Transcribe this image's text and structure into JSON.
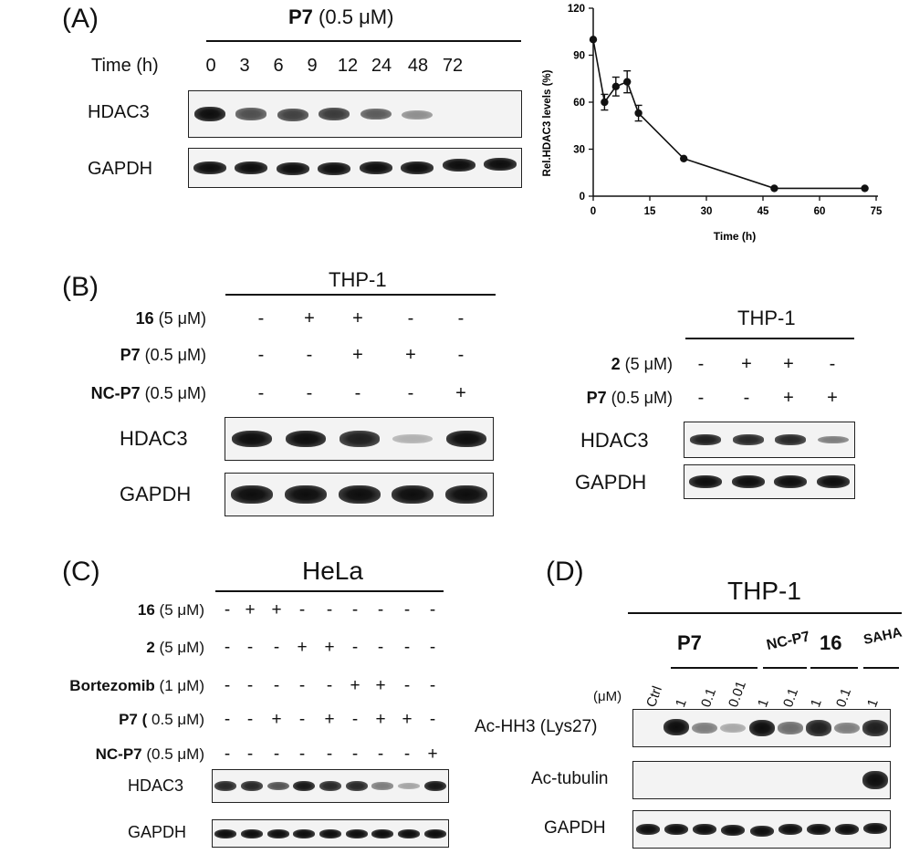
{
  "panelA": {
    "label": "(A)",
    "treatment_bold": "P7",
    "treatment_conc": "(0.5 μM)",
    "time_label": "Time (h)",
    "time_points": [
      "0",
      "3",
      "6",
      "9",
      "12",
      "24",
      "48",
      "72"
    ],
    "rows": [
      "HDAC3",
      "GAPDH"
    ],
    "hdac3_band_intensity": [
      1.0,
      0.62,
      0.7,
      0.74,
      0.55,
      0.25,
      0.0,
      0.0
    ],
    "gapdh_band_intensity": [
      1,
      1,
      1,
      1,
      1,
      1,
      1,
      1
    ]
  },
  "chart_data": {
    "type": "line",
    "title": "",
    "xlabel": "Time (h)",
    "ylabel": "Rel.HDAC3 levels (%)",
    "xlim": [
      0,
      75
    ],
    "ylim": [
      0,
      120
    ],
    "xticks": [
      "0",
      "15",
      "30",
      "45",
      "60",
      "75"
    ],
    "yticks": [
      "0",
      "30",
      "60",
      "90",
      "120"
    ],
    "series": [
      {
        "x": [
          0,
          3,
          6,
          9,
          12,
          24,
          48,
          72
        ],
        "y": [
          100,
          60,
          70,
          73,
          53,
          24,
          5,
          5
        ],
        "err": [
          0,
          5,
          6,
          7,
          5,
          0,
          0,
          0
        ]
      }
    ],
    "grid": false
  },
  "panelB": {
    "label": "(B)",
    "left": {
      "cell_line": "THP-1",
      "conditions": [
        {
          "name": "16",
          "conc": "(5 μM)",
          "signs": [
            "-",
            "+",
            "+",
            "-",
            "-"
          ]
        },
        {
          "name": "P7",
          "conc": "(0.5 μM)",
          "signs": [
            "-",
            "-",
            "+",
            "+",
            "-"
          ]
        },
        {
          "name": "NC-P7",
          "conc": "(0.5 μM)",
          "signs": [
            "-",
            "-",
            "-",
            "-",
            "+"
          ]
        }
      ],
      "rows": [
        "HDAC3",
        "GAPDH"
      ],
      "hdac3_band_intensity": [
        1.0,
        1.0,
        0.9,
        0.05,
        1.0
      ]
    },
    "right": {
      "cell_line": "THP-1",
      "conditions": [
        {
          "name": "2",
          "conc": "(5 μM)",
          "signs": [
            "-",
            "+",
            "+",
            "-"
          ]
        },
        {
          "name": "P7",
          "conc": "(0.5 μM)",
          "signs": [
            "-",
            "-",
            "+",
            "+"
          ]
        }
      ],
      "rows": [
        "HDAC3",
        "GAPDH"
      ],
      "hdac3_band_intensity": [
        0.9,
        0.85,
        0.85,
        0.35
      ]
    }
  },
  "panelC": {
    "label": "(C)",
    "cell_line": "HeLa",
    "conditions": [
      {
        "name": "16",
        "conc": "(5 μM)",
        "signs": [
          "-",
          "+",
          "+",
          "-",
          "-",
          "-",
          "-",
          "-",
          "-"
        ]
      },
      {
        "name": "2",
        "conc": "(5 μM)",
        "signs": [
          "-",
          "-",
          "-",
          "+",
          "+",
          "-",
          "-",
          "-",
          "-"
        ]
      },
      {
        "name": "Bortezomib",
        "conc": "(1 μM)",
        "signs": [
          "-",
          "-",
          "-",
          "-",
          "-",
          "+",
          "+",
          "-",
          "-"
        ]
      },
      {
        "name": "P7 (",
        "conc": "0.5 μM)",
        "signs": [
          "-",
          "-",
          "+",
          "-",
          "+",
          "-",
          "+",
          "+",
          "-"
        ]
      },
      {
        "name": "NC-P7",
        "conc": "(0.5 μM)",
        "signs": [
          "-",
          "-",
          "-",
          "-",
          "-",
          "-",
          "-",
          "-",
          "+"
        ]
      }
    ],
    "rows": [
      "HDAC3",
      "GAPDH"
    ],
    "hdac3_band_intensity": [
      0.85,
      0.85,
      0.6,
      0.95,
      0.85,
      0.85,
      0.35,
      0.12,
      0.95
    ]
  },
  "panelD": {
    "label": "(D)",
    "cell_line": "THP-1",
    "groups": [
      "P7",
      "NC-P7",
      "16",
      "SAHA"
    ],
    "unit": "(μM)",
    "lanes": [
      "Ctrl",
      "1",
      "0.1",
      "0.01",
      "1",
      "0.1",
      "1",
      "0.1",
      "1"
    ],
    "rows": [
      "Ac-HH3 (Lys27)",
      "Ac-tubulin",
      "GAPDH"
    ],
    "achh3_band_intensity": [
      0.0,
      1.0,
      0.35,
      0.1,
      1.0,
      0.45,
      0.9,
      0.35,
      0.9
    ],
    "actubulin_band_intensity": [
      0,
      0,
      0,
      0,
      0,
      0,
      0,
      0,
      1.0
    ]
  }
}
